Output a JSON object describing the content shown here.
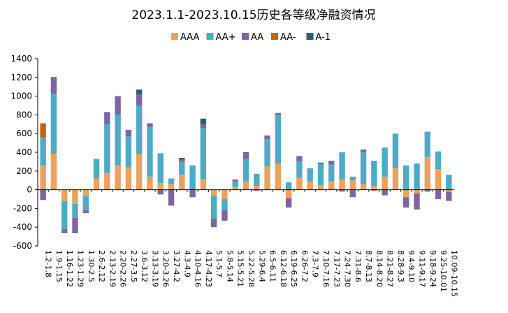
{
  "chart_data": {
    "type": "bar",
    "stacked": true,
    "title": "2023.1.1-2023.10.15历史各等级净融资情况",
    "xlabel": "",
    "ylabel": "",
    "ylim": [
      -600,
      1400
    ],
    "yticks": [
      -600,
      -400,
      -200,
      0,
      200,
      400,
      600,
      800,
      1000,
      1200,
      1400
    ],
    "grid": false,
    "legend_position": "top",
    "categories": [
      "1.2-1.8",
      "1.9-1.15",
      "1.16-1.22",
      "1.23-1.29",
      "1.30-2.5",
      "2.6-2.12",
      "2.13-2.19",
      "2.20-2.26",
      "2.27-3.5",
      "3.6-3.12",
      "3.13-3.19",
      "3.20-3.26",
      "3.27-4.2",
      "4.3-4.9",
      "4.10-4.16",
      "4.17-4.23",
      "5.1-5.7",
      "5.8-5.14",
      "5.15-5.21",
      "5.22-5.28",
      "5.29-6.4",
      "6.5-6.11",
      "6.12-6.18",
      "6.19-6.25",
      "6.26-7.2",
      "7.3-7.9",
      "7.10-7.16",
      "7.17-7.23",
      "7.24-7.30",
      "7.31-8.6",
      "8.7-8.13",
      "8.14-8.20",
      "8.21-8.27",
      "8.28-9.3",
      "9.4-9.10",
      "9.11-9.17",
      "9.18-9.24",
      "9.25-10.01",
      "10.09-10.15"
    ],
    "series": [
      {
        "name": "AAA",
        "color": "#F0A05A",
        "values": [
          260,
          385,
          -120,
          -150,
          -70,
          120,
          180,
          260,
          240,
          380,
          140,
          70,
          60,
          160,
          0,
          110,
          -60,
          -100,
          30,
          90,
          40,
          250,
          280,
          -90,
          130,
          90,
          50,
          90,
          110,
          100,
          60,
          40,
          140,
          230,
          -80,
          -40,
          350,
          220,
          -20
        ]
      },
      {
        "name": "AA+",
        "color": "#4BACC6",
        "values": [
          300,
          640,
          -300,
          -150,
          -150,
          210,
          520,
          540,
          330,
          520,
          530,
          320,
          60,
          140,
          260,
          550,
          -250,
          -120,
          60,
          240,
          130,
          290,
          520,
          80,
          180,
          140,
          230,
          180,
          290,
          40,
          340,
          270,
          310,
          370,
          260,
          280,
          270,
          190,
          160
        ]
      },
      {
        "name": "AA",
        "color": "#8064A2",
        "values": [
          -110,
          180,
          -30,
          -150,
          -30,
          0,
          130,
          200,
          70,
          120,
          40,
          -50,
          -170,
          20,
          -80,
          40,
          -90,
          -110,
          20,
          60,
          -10,
          40,
          20,
          -100,
          50,
          0,
          0,
          40,
          -20,
          -80,
          30,
          -10,
          -60,
          0,
          -110,
          -170,
          -20,
          -100,
          -100
        ]
      },
      {
        "name": "AA-",
        "color": "#C0640E",
        "values": [
          150,
          0,
          0,
          0,
          0,
          0,
          0,
          0,
          0,
          0,
          0,
          0,
          0,
          0,
          0,
          0,
          0,
          0,
          0,
          0,
          0,
          0,
          0,
          0,
          0,
          0,
          0,
          0,
          0,
          0,
          0,
          0,
          0,
          0,
          0,
          0,
          0,
          0,
          0
        ]
      },
      {
        "name": "A-1",
        "color": "#2E5E70",
        "values": [
          0,
          0,
          -10,
          -10,
          0,
          0,
          0,
          0,
          0,
          50,
          0,
          0,
          0,
          20,
          0,
          60,
          0,
          0,
          0,
          10,
          0,
          0,
          0,
          0,
          0,
          0,
          10,
          0,
          0,
          0,
          0,
          0,
          0,
          0,
          0,
          0,
          0,
          0,
          0
        ]
      }
    ]
  }
}
